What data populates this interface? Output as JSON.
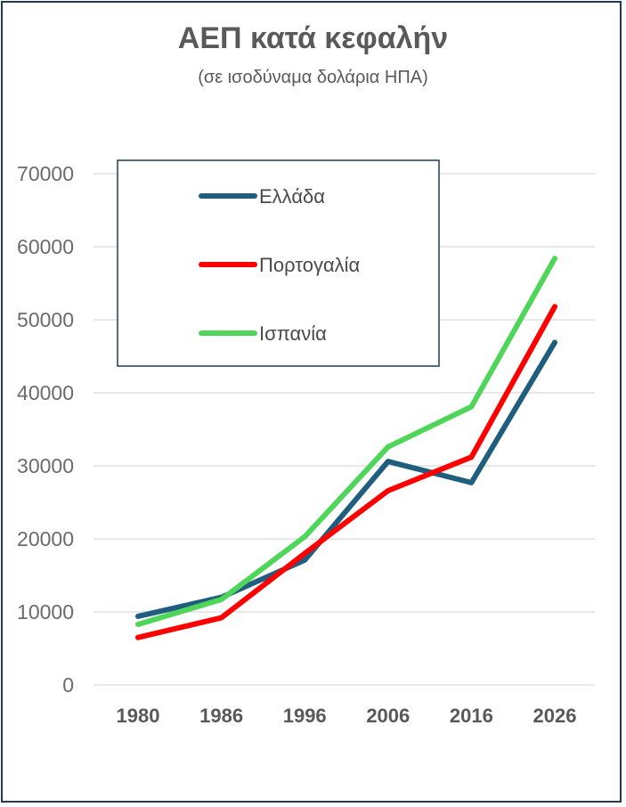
{
  "chart_data": {
    "type": "line",
    "title": "ΑΕΠ κατά κεφαλήν",
    "subtitle": "(σε ισοδύναμα δολάρια ΗΠΑ)",
    "xlabel": "",
    "ylabel": "",
    "categories": [
      "1980",
      "1986",
      "1996",
      "2006",
      "2016",
      "2026"
    ],
    "ylim": [
      0,
      70000
    ],
    "yticks": [
      0,
      10000,
      20000,
      30000,
      40000,
      50000,
      60000,
      70000
    ],
    "grid": true,
    "legend_position": "top-left",
    "series": [
      {
        "name": "Ελλάδα",
        "color": "#1f5e7e",
        "values": [
          9400,
          12000,
          17100,
          30600,
          27700,
          46900
        ]
      },
      {
        "name": "Πορτογαλία",
        "color": "#ff0000",
        "values": [
          6500,
          9200,
          18000,
          26600,
          31200,
          51800
        ]
      },
      {
        "name": "Ισπανία",
        "color": "#4fd65a",
        "values": [
          8300,
          11700,
          20300,
          32600,
          38100,
          58400
        ]
      }
    ]
  }
}
